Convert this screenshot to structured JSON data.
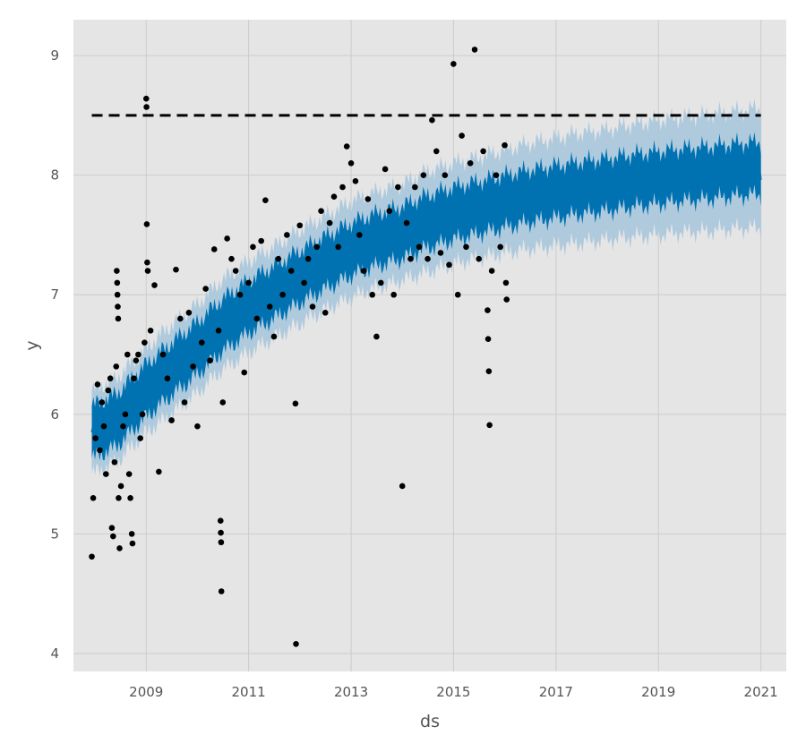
{
  "chart_data": {
    "type": "line",
    "title": "",
    "xlabel": "ds",
    "ylabel": "y",
    "xlim": [
      "2007-08-01",
      "2021-07-01"
    ],
    "ylim": [
      3.85,
      9.3
    ],
    "x_ticks": [
      {
        "date": "2009-01-01",
        "label": "2009"
      },
      {
        "date": "2011-01-01",
        "label": "2011"
      },
      {
        "date": "2013-01-01",
        "label": "2013"
      },
      {
        "date": "2015-01-01",
        "label": "2015"
      },
      {
        "date": "2017-01-01",
        "label": "2017"
      },
      {
        "date": "2019-01-01",
        "label": "2019"
      },
      {
        "date": "2021-01-01",
        "label": "2021"
      }
    ],
    "y_ticks": [
      {
        "value": 4,
        "label": "4"
      },
      {
        "value": 5,
        "label": "5"
      },
      {
        "value": 6,
        "label": "6"
      },
      {
        "value": 7,
        "label": "7"
      },
      {
        "value": 8,
        "label": "8"
      },
      {
        "value": 9,
        "label": "9"
      }
    ],
    "grid": true,
    "background_color": "#e5e5e5",
    "grid_color": "#cccccc",
    "series": [
      {
        "kind": "forecast_band",
        "color": "#0072b2",
        "band_color": "#a8c6dc",
        "x": [
          "2007-12-10",
          "2008-06-01",
          "2009-01-01",
          "2009-06-01",
          "2010-01-01",
          "2010-06-01",
          "2011-01-01",
          "2011-06-01",
          "2012-01-01",
          "2012-06-01",
          "2013-01-01",
          "2013-06-01",
          "2014-01-01",
          "2014-06-01",
          "2015-01-01",
          "2015-06-01",
          "2016-01-01",
          "2016-06-01",
          "2017-01-01",
          "2017-06-01",
          "2018-01-01",
          "2018-06-01",
          "2019-01-01",
          "2019-06-01",
          "2020-01-01",
          "2020-06-01",
          "2021-01-01"
        ],
        "yhat": [
          5.85,
          5.95,
          6.2,
          6.35,
          6.55,
          6.72,
          6.9,
          7.0,
          7.15,
          7.25,
          7.38,
          7.45,
          7.52,
          7.6,
          7.68,
          7.72,
          7.78,
          7.82,
          7.86,
          7.89,
          7.92,
          7.95,
          7.98,
          8.0,
          8.02,
          8.04,
          8.06
        ],
        "lower": [
          5.5,
          5.6,
          5.85,
          5.98,
          6.18,
          6.35,
          6.52,
          6.62,
          6.76,
          6.86,
          6.98,
          7.05,
          7.12,
          7.18,
          7.26,
          7.3,
          7.35,
          7.38,
          7.41,
          7.43,
          7.46,
          7.48,
          7.5,
          7.52,
          7.53,
          7.55,
          7.56
        ],
        "upper": [
          6.2,
          6.3,
          6.55,
          6.72,
          6.92,
          7.1,
          7.28,
          7.38,
          7.54,
          7.64,
          7.78,
          7.85,
          7.92,
          8.02,
          8.1,
          8.14,
          8.21,
          8.26,
          8.31,
          8.35,
          8.38,
          8.42,
          8.46,
          8.48,
          8.51,
          8.53,
          8.56
        ]
      },
      {
        "kind": "cap",
        "style": "dashed",
        "color": "#000000",
        "x": [
          "2007-12-10",
          "2021-01-01"
        ],
        "y": [
          8.5,
          8.5
        ]
      },
      {
        "kind": "observed",
        "color": "#000000",
        "points": [
          [
            "2007-12-10",
            4.81
          ],
          [
            "2007-12-20",
            5.3
          ],
          [
            "2008-01-05",
            5.8
          ],
          [
            "2008-01-20",
            6.25
          ],
          [
            "2008-02-05",
            5.7
          ],
          [
            "2008-02-20",
            6.1
          ],
          [
            "2008-03-05",
            5.9
          ],
          [
            "2008-03-20",
            5.5
          ],
          [
            "2008-04-05",
            6.2
          ],
          [
            "2008-04-20",
            6.3
          ],
          [
            "2008-05-01",
            5.05
          ],
          [
            "2008-05-10",
            4.98
          ],
          [
            "2008-05-20",
            5.6
          ],
          [
            "2008-06-01",
            6.4
          ],
          [
            "2008-06-05",
            7.2
          ],
          [
            "2008-06-08",
            7.1
          ],
          [
            "2008-06-10",
            7.0
          ],
          [
            "2008-06-12",
            6.9
          ],
          [
            "2008-06-15",
            6.8
          ],
          [
            "2008-06-18",
            5.3
          ],
          [
            "2008-06-25",
            4.88
          ],
          [
            "2008-07-05",
            5.4
          ],
          [
            "2008-07-20",
            5.9
          ],
          [
            "2008-08-05",
            6.0
          ],
          [
            "2008-08-20",
            6.5
          ],
          [
            "2008-09-01",
            5.5
          ],
          [
            "2008-09-10",
            5.3
          ],
          [
            "2008-09-20",
            5.0
          ],
          [
            "2008-09-25",
            4.92
          ],
          [
            "2008-10-05",
            6.3
          ],
          [
            "2008-10-20",
            6.45
          ],
          [
            "2008-11-05",
            6.5
          ],
          [
            "2008-11-20",
            5.8
          ],
          [
            "2008-12-05",
            6.0
          ],
          [
            "2008-12-20",
            6.6
          ],
          [
            "2009-01-01",
            8.64
          ],
          [
            "2009-01-03",
            8.57
          ],
          [
            "2009-01-05",
            7.59
          ],
          [
            "2009-01-08",
            7.27
          ],
          [
            "2009-01-12",
            7.2
          ],
          [
            "2009-02-01",
            6.7
          ],
          [
            "2009-03-01",
            7.08
          ],
          [
            "2009-04-01",
            5.52
          ],
          [
            "2009-05-01",
            6.5
          ],
          [
            "2009-06-01",
            6.3
          ],
          [
            "2009-07-01",
            5.95
          ],
          [
            "2009-08-01",
            7.21
          ],
          [
            "2009-09-01",
            6.8
          ],
          [
            "2009-10-01",
            6.1
          ],
          [
            "2009-11-01",
            6.85
          ],
          [
            "2009-12-01",
            6.4
          ],
          [
            "2010-01-01",
            5.9
          ],
          [
            "2010-02-01",
            6.6
          ],
          [
            "2010-03-01",
            7.05
          ],
          [
            "2010-04-01",
            6.45
          ],
          [
            "2010-05-01",
            7.38
          ],
          [
            "2010-06-01",
            6.7
          ],
          [
            "2010-06-15",
            5.11
          ],
          [
            "2010-06-17",
            5.01
          ],
          [
            "2010-06-19",
            4.93
          ],
          [
            "2010-06-21",
            4.52
          ],
          [
            "2010-07-01",
            6.1
          ],
          [
            "2010-08-01",
            7.47
          ],
          [
            "2010-09-01",
            7.3
          ],
          [
            "2010-10-01",
            7.2
          ],
          [
            "2010-11-01",
            7.0
          ],
          [
            "2010-12-01",
            6.35
          ],
          [
            "2011-01-01",
            7.1
          ],
          [
            "2011-02-01",
            7.4
          ],
          [
            "2011-03-01",
            6.8
          ],
          [
            "2011-04-01",
            7.45
          ],
          [
            "2011-05-01",
            7.79
          ],
          [
            "2011-06-01",
            6.9
          ],
          [
            "2011-07-01",
            6.65
          ],
          [
            "2011-08-01",
            7.3
          ],
          [
            "2011-09-01",
            7.0
          ],
          [
            "2011-10-01",
            7.5
          ],
          [
            "2011-11-01",
            7.2
          ],
          [
            "2011-12-01",
            6.09
          ],
          [
            "2011-12-05",
            4.08
          ],
          [
            "2012-01-01",
            7.58
          ],
          [
            "2012-02-01",
            7.1
          ],
          [
            "2012-03-01",
            7.3
          ],
          [
            "2012-04-01",
            6.9
          ],
          [
            "2012-05-01",
            7.4
          ],
          [
            "2012-06-01",
            7.7
          ],
          [
            "2012-07-01",
            6.85
          ],
          [
            "2012-08-01",
            7.6
          ],
          [
            "2012-09-01",
            7.82
          ],
          [
            "2012-10-01",
            7.4
          ],
          [
            "2012-11-01",
            7.9
          ],
          [
            "2012-12-01",
            8.24
          ],
          [
            "2013-01-01",
            8.1
          ],
          [
            "2013-02-01",
            7.95
          ],
          [
            "2013-03-01",
            7.5
          ],
          [
            "2013-04-01",
            7.2
          ],
          [
            "2013-05-01",
            7.8
          ],
          [
            "2013-06-01",
            7.0
          ],
          [
            "2013-07-01",
            6.65
          ],
          [
            "2013-08-01",
            7.1
          ],
          [
            "2013-09-01",
            8.05
          ],
          [
            "2013-10-01",
            7.7
          ],
          [
            "2013-11-01",
            7.0
          ],
          [
            "2013-12-01",
            7.9
          ],
          [
            "2014-01-01",
            5.4
          ],
          [
            "2014-02-01",
            7.6
          ],
          [
            "2014-03-01",
            7.3
          ],
          [
            "2014-04-01",
            7.9
          ],
          [
            "2014-05-01",
            7.4
          ],
          [
            "2014-06-01",
            8.0
          ],
          [
            "2014-07-01",
            7.3
          ],
          [
            "2014-08-01",
            8.46
          ],
          [
            "2014-09-01",
            8.2
          ],
          [
            "2014-10-01",
            7.35
          ],
          [
            "2014-11-01",
            8.0
          ],
          [
            "2014-12-01",
            7.25
          ],
          [
            "2015-01-01",
            8.93
          ],
          [
            "2015-02-01",
            7.0
          ],
          [
            "2015-03-01",
            8.33
          ],
          [
            "2015-04-01",
            7.4
          ],
          [
            "2015-05-01",
            8.1
          ],
          [
            "2015-06-01",
            9.05
          ],
          [
            "2015-07-01",
            7.3
          ],
          [
            "2015-08-01",
            8.2
          ],
          [
            "2015-09-01",
            6.87
          ],
          [
            "2015-09-05",
            6.63
          ],
          [
            "2015-09-10",
            6.36
          ],
          [
            "2015-09-15",
            5.91
          ],
          [
            "2015-10-01",
            7.2
          ],
          [
            "2015-11-01",
            8.0
          ],
          [
            "2015-12-01",
            7.4
          ],
          [
            "2016-01-01",
            8.25
          ],
          [
            "2016-01-10",
            7.1
          ],
          [
            "2016-01-15",
            6.96
          ]
        ]
      }
    ]
  }
}
